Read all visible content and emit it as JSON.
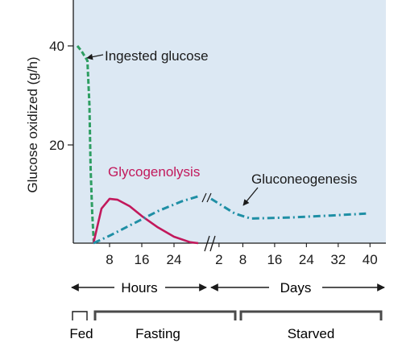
{
  "chart_data": {
    "type": "line",
    "ylabel": "Glucose oxidized (g/h)",
    "yticks": [
      20,
      40
    ],
    "ylim": [
      0,
      48
    ],
    "background_color": "#dce8f3",
    "axis_break": "//",
    "x_segments": [
      {
        "unit_label": "Hours",
        "ticks": [
          8,
          16,
          24
        ],
        "range": [
          0,
          32
        ]
      },
      {
        "unit_label": "Days",
        "ticks": [
          2,
          8,
          16,
          24,
          32,
          40
        ],
        "range": [
          0,
          44
        ]
      }
    ],
    "phases": [
      "Fed",
      "Fasting",
      "Starved"
    ],
    "series": [
      {
        "name": "Ingested glucose",
        "color": "#2e9e62",
        "style": "dashed",
        "segment": "hours",
        "points": [
          [
            0,
            40
          ],
          [
            1,
            39
          ],
          [
            2.5,
            37
          ],
          [
            3,
            28
          ],
          [
            3.3,
            15
          ],
          [
            3.7,
            6
          ],
          [
            4.1,
            0
          ]
        ]
      },
      {
        "name": "Glycogenolysis",
        "color": "#c2185b",
        "style": "solid",
        "segment": "hours",
        "points": [
          [
            4,
            0
          ],
          [
            6,
            7
          ],
          [
            8,
            9
          ],
          [
            10,
            8.8
          ],
          [
            13,
            7.5
          ],
          [
            16,
            5.5
          ],
          [
            20,
            3.2
          ],
          [
            24,
            1.3
          ],
          [
            28,
            0.2
          ],
          [
            30,
            0
          ]
        ]
      },
      {
        "name": "Gluconeogenesis",
        "color": "#1f8fa5",
        "style": "dash-dot",
        "segments": [
          {
            "segment": "hours",
            "points": [
              [
                4,
                0
              ],
              [
                8,
                1.5
              ],
              [
                14,
                4
              ],
              [
                20,
                6.5
              ],
              [
                26,
                8.5
              ],
              [
                30,
                9.5
              ]
            ]
          },
          {
            "segment": "days",
            "points": [
              [
                0,
                9
              ],
              [
                3,
                7.5
              ],
              [
                6,
                6
              ],
              [
                10,
                5
              ],
              [
                20,
                5.2
              ],
              [
                30,
                5.6
              ],
              [
                39,
                6
              ]
            ]
          }
        ]
      }
    ]
  }
}
